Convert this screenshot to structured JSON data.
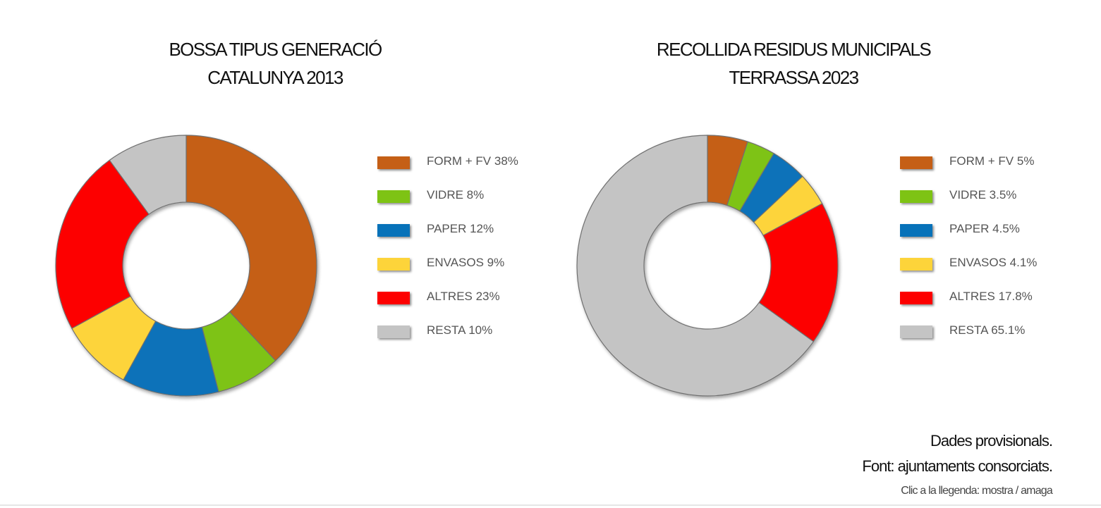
{
  "footer": {
    "note_provisional": "Dades provisionals.",
    "note_source": "Font: ajuntaments consorciats.",
    "note_legend_hint": "Clic a la llegenda: mostra / amaga"
  },
  "chart_data": [
    {
      "type": "pie",
      "donut": true,
      "title": "BOSSA TIPUS GENERACIÓ",
      "subtitle": "CATALUNYA 2013",
      "legend_position": "right",
      "categories": [
        "FORM + FV",
        "VIDRE",
        "PAPER",
        "ENVASOS",
        "ALTRES",
        "RESTA"
      ],
      "values": [
        38,
        8,
        12,
        9,
        23,
        10
      ],
      "labels": [
        "FORM + FV 38%",
        "VIDRE 8%",
        "PAPER 12%",
        "ENVASOS 9%",
        "ALTRES 23%",
        "RESTA 10%"
      ],
      "colors": [
        "#c55f16",
        "#7ec314",
        "#0772b9",
        "#fdd43a",
        "#fd0000",
        "#c4c4c4"
      ]
    },
    {
      "type": "pie",
      "donut": true,
      "title": "RECOLLIDA RESIDUS MUNICIPALS",
      "subtitle": "TERRASSA 2023",
      "legend_position": "right",
      "categories": [
        "FORM + FV",
        "VIDRE",
        "PAPER",
        "ENVASOS",
        "ALTRES",
        "RESTA"
      ],
      "values": [
        5,
        3.5,
        4.5,
        4.1,
        17.8,
        65.1
      ],
      "labels": [
        "FORM + FV 5%",
        "VIDRE 3.5%",
        "PAPER 4.5%",
        "ENVASOS 4.1%",
        "ALTRES 17.8%",
        "RESTA 65.1%"
      ],
      "colors": [
        "#c55f16",
        "#7ec314",
        "#0772b9",
        "#fdd43a",
        "#fd0000",
        "#c4c4c4"
      ]
    }
  ]
}
